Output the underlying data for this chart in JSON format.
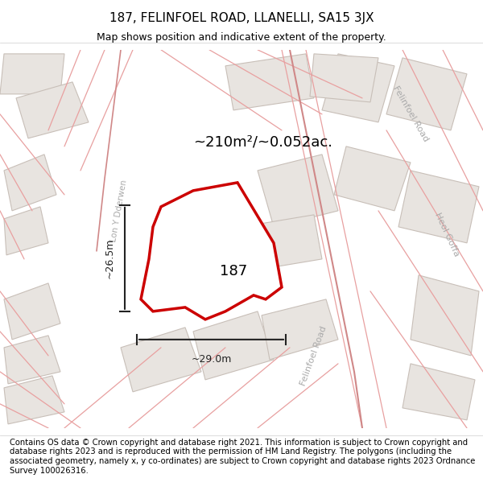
{
  "title": "187, FELINFOEL ROAD, LLANELLI, SA15 3JX",
  "subtitle": "Map shows position and indicative extent of the property.",
  "area_label": "~210m²/~0.052ac.",
  "property_number": "187",
  "dim_width": "~29.0m",
  "dim_height": "~26.5m",
  "footer": "Contains OS data © Crown copyright and database right 2021. This information is subject to Crown copyright and database rights 2023 and is reproduced with the permission of HM Land Registry. The polygons (including the associated geometry, namely x, y co-ordinates) are subject to Crown copyright and database rights 2023 Ordnance Survey 100026316.",
  "bg_color": "#f5f0ee",
  "map_bg": "#f5f0ee",
  "road_color": "#f5f0ee",
  "building_fill": "#e8e4e0",
  "building_edge": "#c8bfb8",
  "road_line_color": "#e8a0a0",
  "property_fill": "#ffffff",
  "property_edge": "#cc0000",
  "dim_color": "#222222",
  "text_color": "#333333",
  "road_label_color": "#aaaaaa",
  "title_fontsize": 11,
  "subtitle_fontsize": 9,
  "footer_fontsize": 7.2
}
